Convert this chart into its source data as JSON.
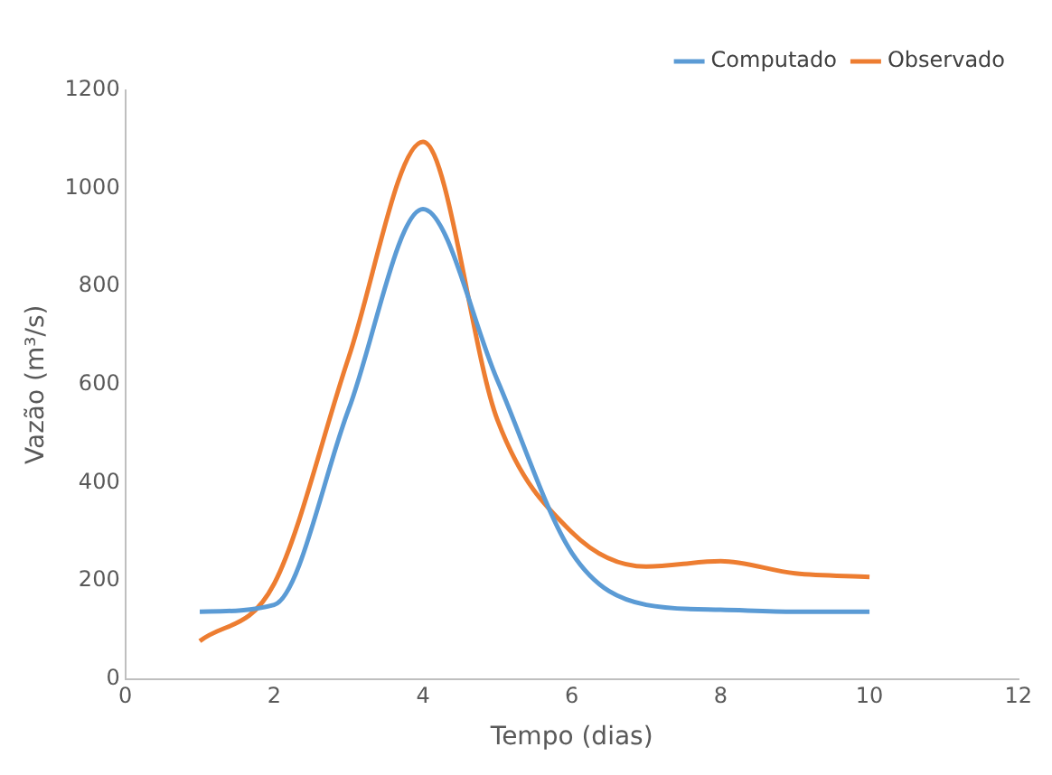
{
  "chart_data": {
    "type": "line",
    "xlabel": "Tempo (dias)",
    "ylabel": "Vazão (m³/s)",
    "x": [
      1,
      2,
      3,
      4,
      5,
      6,
      7,
      8,
      9,
      10
    ],
    "series": [
      {
        "name": "Computado",
        "color": "#5b9bd5",
        "values": [
          137,
          151,
          549,
          958,
          609,
          257,
          151,
          141,
          137,
          137
        ]
      },
      {
        "name": "Observado",
        "color": "#ed7d31",
        "values": [
          77,
          194,
          655,
          1095,
          528,
          299,
          229,
          240,
          215,
          208
        ]
      }
    ],
    "xlim": [
      0,
      12
    ],
    "xticks": [
      0,
      2,
      4,
      6,
      8,
      10,
      12
    ],
    "ylim": [
      0,
      1200
    ],
    "yticks": [
      0,
      200,
      400,
      600,
      800,
      1000,
      1200
    ],
    "grid": false,
    "legend": "top right",
    "marker": "none",
    "line_style": "solid"
  }
}
